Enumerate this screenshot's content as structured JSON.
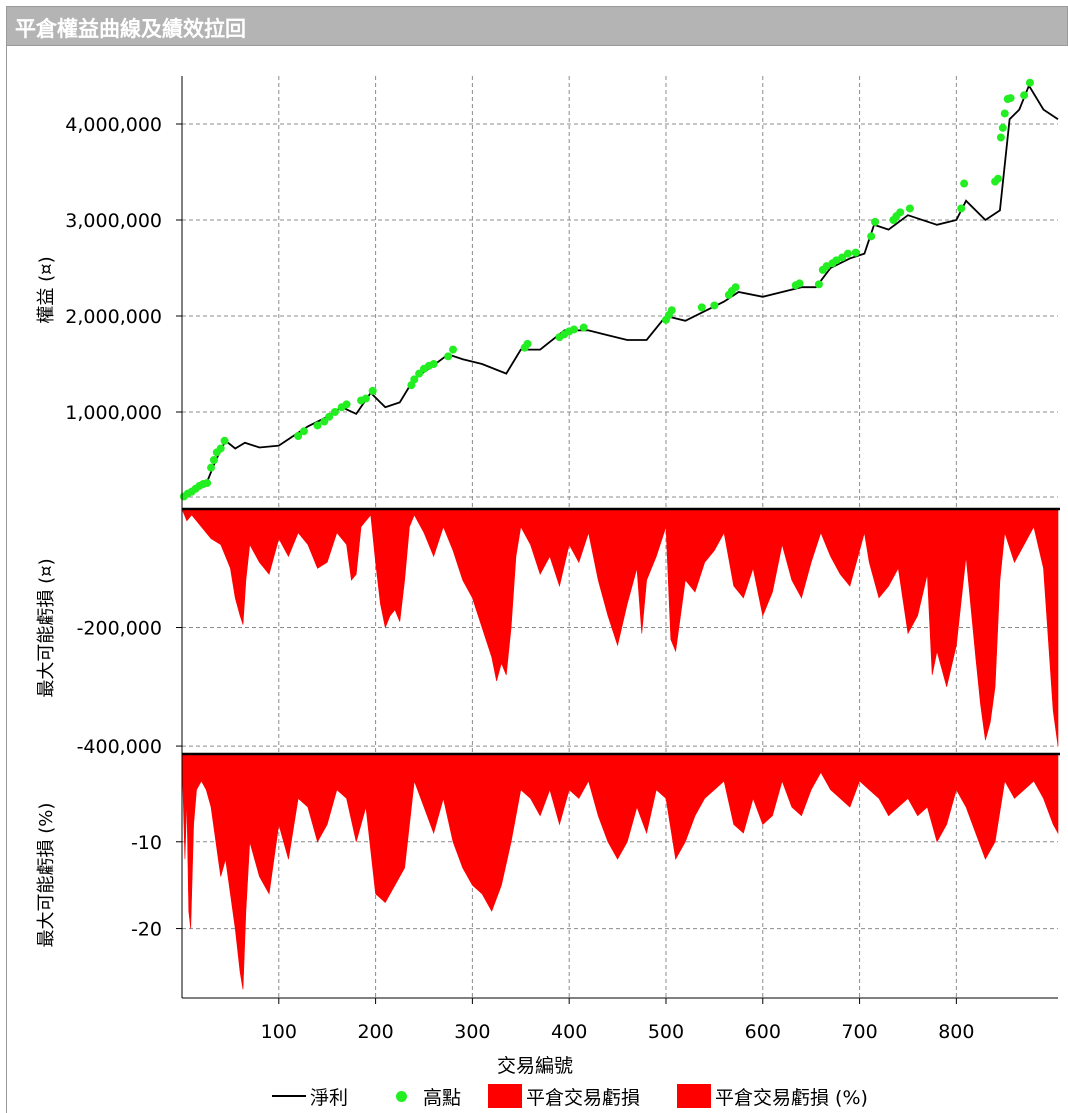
{
  "window": {
    "title": "平倉權益曲線及績效拉回"
  },
  "chart_data": [
    {
      "type": "line",
      "panel": "equity",
      "ylabel": "權益 (¤)",
      "xlabel": "交易編號",
      "xlim": [
        0,
        905
      ],
      "ylim": [
        0,
        4500000
      ],
      "y_ticks": [
        1000000,
        2000000,
        3000000,
        4000000
      ],
      "y_tick_labels": [
        "1,000,000",
        "2,000,000",
        "3,000,000",
        "4,000,000"
      ],
      "x_ticks": [
        100,
        200,
        300,
        400,
        500,
        600,
        700,
        800
      ],
      "x_tick_labels": [
        "100",
        "200",
        "300",
        "400",
        "500",
        "600",
        "700",
        "800"
      ],
      "grid": true,
      "series": [
        {
          "name": "淨利",
          "color": "#000000",
          "x": [
            0,
            10,
            25,
            35,
            45,
            55,
            65,
            80,
            100,
            115,
            130,
            150,
            165,
            180,
            195,
            210,
            225,
            240,
            255,
            275,
            290,
            310,
            335,
            350,
            370,
            395,
            420,
            440,
            460,
            480,
            500,
            520,
            540,
            560,
            575,
            600,
            620,
            640,
            655,
            670,
            690,
            705,
            715,
            730,
            750,
            780,
            800,
            810,
            830,
            845,
            855,
            865,
            875,
            890,
            905
          ],
          "values": [
            100000,
            150000,
            250000,
            500000,
            700000,
            620000,
            680000,
            630000,
            650000,
            750000,
            850000,
            950000,
            1050000,
            980000,
            1200000,
            1050000,
            1100000,
            1350000,
            1450000,
            1600000,
            1550000,
            1500000,
            1400000,
            1650000,
            1650000,
            1850000,
            1850000,
            1800000,
            1750000,
            1750000,
            2000000,
            1950000,
            2050000,
            2150000,
            2250000,
            2200000,
            2250000,
            2300000,
            2300000,
            2500000,
            2600000,
            2650000,
            2950000,
            2900000,
            3050000,
            2950000,
            3000000,
            3200000,
            3000000,
            3100000,
            4050000,
            4150000,
            4400000,
            4150000,
            4050000
          ]
        },
        {
          "name": "高點",
          "color": "#22ee22",
          "x": [
            2,
            6,
            10,
            14,
            18,
            22,
            26,
            30,
            33,
            36,
            40,
            44,
            120,
            126,
            140,
            147,
            152,
            158,
            165,
            170,
            185,
            190,
            197,
            237,
            240,
            245,
            250,
            255,
            260,
            275,
            280,
            354,
            357,
            390,
            395,
            400,
            405,
            415,
            500,
            503,
            506,
            537,
            550,
            565,
            568,
            572,
            634,
            638,
            658,
            662,
            666,
            672,
            676,
            682,
            688,
            696,
            712,
            716,
            735,
            738,
            742,
            752,
            805,
            808,
            840,
            843,
            846,
            848,
            850,
            853,
            856,
            870,
            876
          ],
          "values": [
            120000,
            150000,
            170000,
            200000,
            230000,
            250000,
            260000,
            420000,
            500000,
            580000,
            620000,
            700000,
            750000,
            800000,
            860000,
            900000,
            950000,
            1000000,
            1050000,
            1080000,
            1120000,
            1140000,
            1220000,
            1280000,
            1340000,
            1400000,
            1450000,
            1480000,
            1500000,
            1580000,
            1650000,
            1670000,
            1710000,
            1780000,
            1810000,
            1840000,
            1860000,
            1880000,
            1960000,
            2010000,
            2060000,
            2090000,
            2110000,
            2220000,
            2260000,
            2300000,
            2320000,
            2340000,
            2330000,
            2480000,
            2520000,
            2550000,
            2580000,
            2610000,
            2650000,
            2660000,
            2830000,
            2980000,
            3000000,
            3040000,
            3080000,
            3120000,
            3120000,
            3380000,
            3400000,
            3430000,
            3860000,
            3960000,
            4110000,
            4260000,
            4270000,
            4300000,
            4430000
          ]
        }
      ]
    },
    {
      "type": "area",
      "panel": "drawdown-abs",
      "ylabel": "最大可能虧損 (¤)",
      "ylim": [
        -410000,
        0
      ],
      "y_ticks": [
        -200000,
        -400000
      ],
      "y_tick_labels": [
        "-200,000",
        "-400,000"
      ],
      "grid": true,
      "series": [
        {
          "name": "平倉交易虧損",
          "color": "#ff0000",
          "x": [
            0,
            5,
            10,
            20,
            30,
            40,
            50,
            55,
            60,
            63,
            66,
            70,
            80,
            90,
            100,
            110,
            120,
            130,
            140,
            150,
            160,
            170,
            175,
            180,
            185,
            190,
            195,
            200,
            205,
            210,
            215,
            220,
            225,
            230,
            235,
            240,
            250,
            260,
            270,
            280,
            290,
            300,
            310,
            320,
            325,
            330,
            335,
            340,
            345,
            350,
            360,
            370,
            380,
            390,
            400,
            410,
            420,
            430,
            440,
            450,
            460,
            470,
            475,
            480,
            490,
            500,
            505,
            510,
            515,
            520,
            530,
            540,
            550,
            560,
            570,
            580,
            590,
            600,
            610,
            620,
            630,
            640,
            650,
            660,
            670,
            680,
            690,
            700,
            705,
            710,
            720,
            730,
            740,
            750,
            760,
            770,
            775,
            780,
            790,
            800,
            810,
            820,
            825,
            830,
            835,
            840,
            845,
            850,
            860,
            870,
            880,
            890,
            900,
            905
          ],
          "values": [
            0,
            -20000,
            -10000,
            -30000,
            -50000,
            -60000,
            -100000,
            -150000,
            -180000,
            -195000,
            -120000,
            -60000,
            -90000,
            -110000,
            -50000,
            -80000,
            -40000,
            -60000,
            -100000,
            -90000,
            -40000,
            -60000,
            -120000,
            -110000,
            -30000,
            -20000,
            -10000,
            -90000,
            -160000,
            -200000,
            -180000,
            -170000,
            -190000,
            -120000,
            -30000,
            -10000,
            -40000,
            -80000,
            -30000,
            -70000,
            -120000,
            -150000,
            -200000,
            -250000,
            -290000,
            -260000,
            -280000,
            -200000,
            -80000,
            -30000,
            -60000,
            -110000,
            -80000,
            -130000,
            -60000,
            -90000,
            -40000,
            -120000,
            -180000,
            -230000,
            -160000,
            -100000,
            -210000,
            -120000,
            -80000,
            -30000,
            -220000,
            -240000,
            -180000,
            -120000,
            -140000,
            -90000,
            -70000,
            -40000,
            -130000,
            -150000,
            -100000,
            -180000,
            -140000,
            -60000,
            -120000,
            -150000,
            -90000,
            -40000,
            -80000,
            -110000,
            -130000,
            -70000,
            -40000,
            -90000,
            -150000,
            -130000,
            -100000,
            -210000,
            -180000,
            -110000,
            -280000,
            -240000,
            -300000,
            -230000,
            -80000,
            -250000,
            -330000,
            -390000,
            -360000,
            -300000,
            -120000,
            -40000,
            -90000,
            -60000,
            -30000,
            -100000,
            -340000,
            -400000
          ]
        }
      ]
    },
    {
      "type": "area",
      "panel": "drawdown-pct",
      "ylabel": "最大可能虧損 (%)",
      "ylim": [
        -28,
        0
      ],
      "y_ticks": [
        -10,
        -20
      ],
      "y_tick_labels": [
        "-10",
        "-20"
      ],
      "grid": true,
      "series": [
        {
          "name": "平倉交易虧損 (%)",
          "color": "#ff0000",
          "x": [
            0,
            3,
            5,
            7,
            9,
            12,
            15,
            20,
            25,
            30,
            35,
            40,
            45,
            50,
            55,
            60,
            63,
            66,
            70,
            80,
            90,
            100,
            110,
            120,
            130,
            140,
            150,
            160,
            170,
            180,
            190,
            200,
            210,
            220,
            230,
            240,
            250,
            260,
            270,
            280,
            290,
            300,
            310,
            320,
            330,
            340,
            350,
            360,
            370,
            380,
            390,
            400,
            410,
            420,
            430,
            440,
            450,
            460,
            470,
            480,
            490,
            500,
            510,
            520,
            530,
            540,
            550,
            560,
            570,
            580,
            590,
            600,
            610,
            620,
            630,
            640,
            650,
            660,
            670,
            680,
            690,
            700,
            710,
            720,
            730,
            740,
            750,
            760,
            770,
            780,
            790,
            800,
            810,
            820,
            830,
            840,
            850,
            860,
            870,
            880,
            890,
            900,
            905
          ],
          "values": [
            0,
            -12,
            -5,
            -18,
            -20,
            -8,
            -4,
            -3,
            -4,
            -6,
            -10,
            -14,
            -12,
            -16,
            -20,
            -25,
            -27,
            -18,
            -10,
            -14,
            -16,
            -8,
            -12,
            -5,
            -6,
            -10,
            -8,
            -4,
            -5,
            -10,
            -6,
            -16,
            -17,
            -15,
            -13,
            -3,
            -6,
            -9,
            -5,
            -10,
            -13,
            -15,
            -16,
            -18,
            -15,
            -10,
            -4,
            -5,
            -7,
            -4,
            -8,
            -4,
            -5,
            -3,
            -7,
            -10,
            -12,
            -10,
            -6,
            -9,
            -4,
            -5,
            -12,
            -10,
            -7,
            -5,
            -4,
            -3,
            -8,
            -9,
            -5,
            -8,
            -7,
            -3,
            -6,
            -7,
            -4,
            -2,
            -4,
            -5,
            -6,
            -3,
            -4,
            -5,
            -7,
            -6,
            -5,
            -7,
            -6,
            -10,
            -8,
            -4,
            -6,
            -9,
            -12,
            -10,
            -3,
            -5,
            -4,
            -3,
            -5,
            -8,
            -9
          ]
        }
      ]
    }
  ],
  "legend": {
    "items": [
      "淨利",
      "高點",
      "平倉交易虧損",
      "平倉交易虧損 (%)"
    ]
  }
}
